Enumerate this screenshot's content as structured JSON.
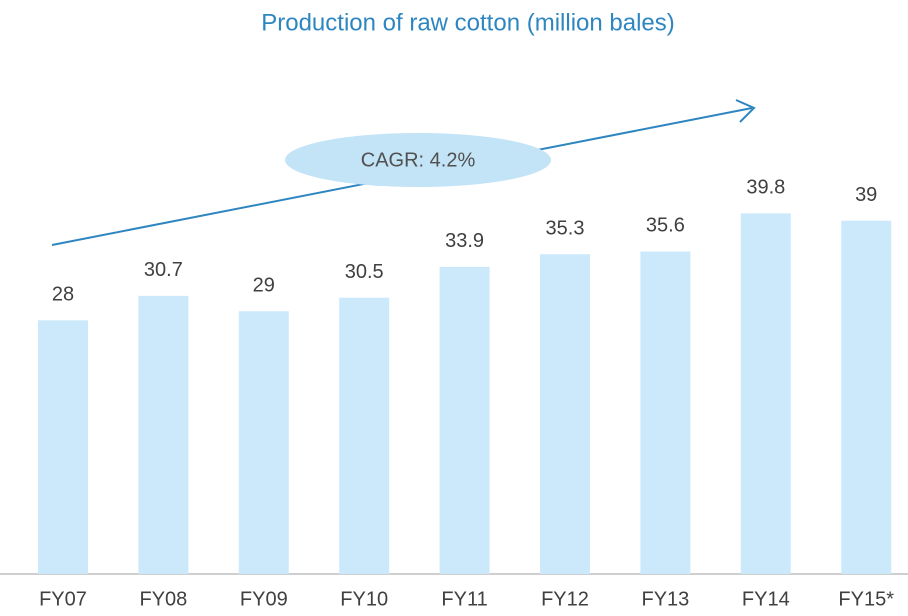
{
  "chart_data": {
    "type": "bar",
    "title": "Production of raw cotton (million bales)",
    "annotation": "CAGR: 4.2%",
    "categories": [
      "FY07",
      "FY08",
      "FY09",
      "FY10",
      "FY11",
      "FY12",
      "FY13",
      "FY14",
      "FY15*"
    ],
    "values": [
      28,
      30.7,
      29,
      30.5,
      33.9,
      35.3,
      35.6,
      39.8,
      39
    ],
    "color": "#cce9fb",
    "ylim": [
      0,
      50
    ]
  }
}
